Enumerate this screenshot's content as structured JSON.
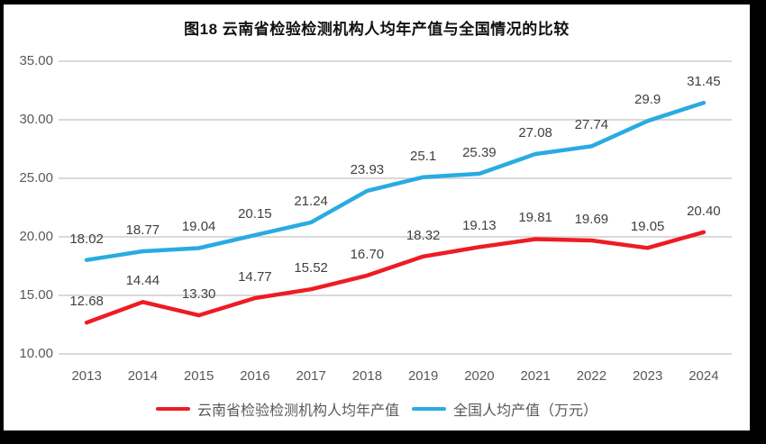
{
  "frame": {
    "outer_background": "#000000",
    "chart_background": "#ffffff"
  },
  "chart_data": {
    "type": "line",
    "title": "图18  云南省检验检测机构人均年产值与全国情况的比较",
    "categories": [
      "2013",
      "2014",
      "2015",
      "2016",
      "2017",
      "2018",
      "2019",
      "2020",
      "2021",
      "2022",
      "2023",
      "2024"
    ],
    "series": [
      {
        "name": "云南省检验检测机构人均年产值",
        "color": "#ED1C24",
        "values": [
          12.68,
          14.44,
          13.3,
          14.77,
          15.52,
          16.7,
          18.32,
          19.13,
          19.81,
          19.69,
          19.05,
          20.4
        ],
        "labels": [
          "12.68",
          "14.44",
          "13.30",
          "14.77",
          "15.52",
          "16.70",
          "18.32",
          "19.13",
          "19.81",
          "19.69",
          "19.05",
          "20.40"
        ]
      },
      {
        "name": "全国人均产值（万元）",
        "color": "#29ABE2",
        "values": [
          18.02,
          18.77,
          19.04,
          20.15,
          21.24,
          23.93,
          25.1,
          25.39,
          27.08,
          27.74,
          29.9,
          31.45
        ],
        "labels": [
          "18.02",
          "18.77",
          "19.04",
          "20.15",
          "21.24",
          "23.93",
          "25.1",
          "25.39",
          "27.08",
          "27.74",
          "29.9",
          "31.45"
        ]
      }
    ],
    "y_axis": {
      "min": 10,
      "max": 35,
      "step": 5,
      "tick_labels": [
        "10.00",
        "15.00",
        "20.00",
        "25.00",
        "30.00",
        "35.00"
      ]
    },
    "grid": true,
    "legend_position": "bottom",
    "colors": {
      "gridline": "#D9D9D9",
      "axis_text": "#595959",
      "data_label_text": "#404040",
      "title_text": "#111111"
    }
  }
}
